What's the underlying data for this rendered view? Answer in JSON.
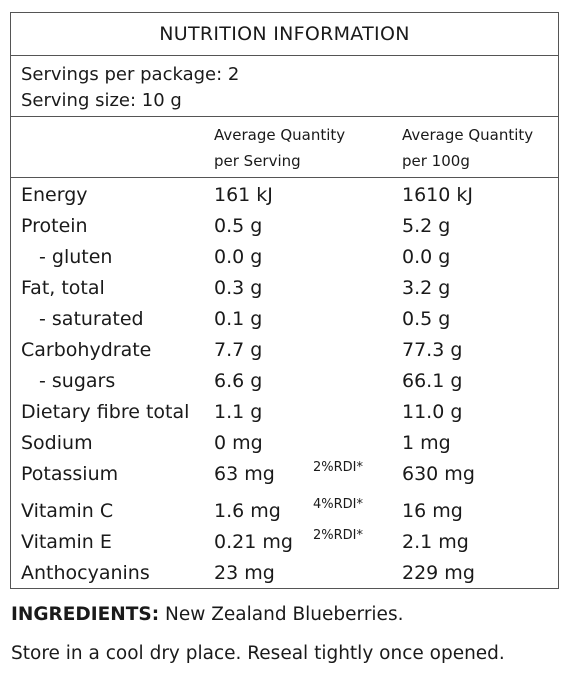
{
  "panel": {
    "title": "NUTRITION INFORMATION",
    "servings_per_package": "Servings per package: 2",
    "serving_size": "Serving size: 10 g",
    "col_serving_line1": "Average Quantity",
    "col_serving_line2": "per Serving",
    "col_100g_line1": "Average Quantity",
    "col_100g_line2": "per 100g"
  },
  "rows": [
    {
      "name": "Energy",
      "serving": "161 kJ",
      "rdi": "",
      "per100": "1610 kJ",
      "sub": false
    },
    {
      "name": "Protein",
      "serving": "0.5 g",
      "rdi": "",
      "per100": "5.2 g",
      "sub": false
    },
    {
      "name": "- gluten",
      "serving": "0.0 g",
      "rdi": "",
      "per100": "0.0 g",
      "sub": true
    },
    {
      "name": "Fat, total",
      "serving": "0.3 g",
      "rdi": "",
      "per100": "3.2 g",
      "sub": false
    },
    {
      "name": "- saturated",
      "serving": "0.1 g",
      "rdi": "",
      "per100": "0.5 g",
      "sub": true
    },
    {
      "name": "Carbohydrate",
      "serving": "7.7 g",
      "rdi": "",
      "per100": "77.3 g",
      "sub": false
    },
    {
      "name": "- sugars",
      "serving": "6.6 g",
      "rdi": "",
      "per100": "66.1 g",
      "sub": true
    },
    {
      "name": "Dietary fibre total",
      "serving": "1.1 g",
      "rdi": "",
      "per100": "11.0 g",
      "sub": false
    },
    {
      "name": "Sodium",
      "serving": "0 mg",
      "rdi": "",
      "per100": "1 mg",
      "sub": false
    },
    {
      "name": "Potassium",
      "serving": "63 mg",
      "rdi": "2%RDI*",
      "per100": "630 mg",
      "sub": false
    },
    {
      "name": "Vitamin C",
      "serving": "1.6 mg",
      "rdi": "4%RDI*",
      "per100": "16 mg",
      "sub": false
    },
    {
      "name": "Vitamin E",
      "serving": "0.21 mg",
      "rdi": "2%RDI*",
      "per100": "2.1 mg",
      "sub": false
    },
    {
      "name": "Anthocyanins",
      "serving": "23 mg",
      "rdi": "",
      "per100": "229 mg",
      "sub": false
    }
  ],
  "footer": {
    "ingredients_label": "INGREDIENTS:",
    "ingredients_text": " New Zealand Blueberries.",
    "storage": "Store in a cool dry place. Reseal tightly once opened."
  }
}
